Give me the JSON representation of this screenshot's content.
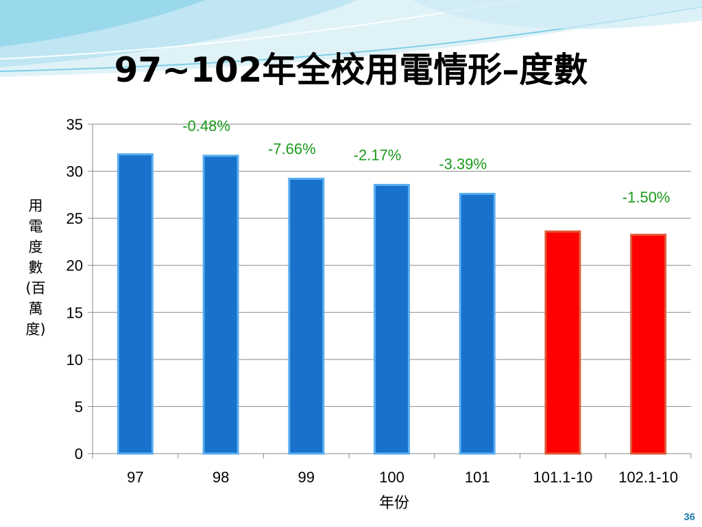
{
  "slide": {
    "title": "97~102年全校用電情形–度數",
    "page_number": "36"
  },
  "colors": {
    "bar_blue": "#1872cc",
    "bar_blue_edge": "#5aaef0",
    "bar_red": "#ff0000",
    "bar_red_edge": "#e05a3a",
    "label_green": "#1a9a1a",
    "grid": "#888888",
    "deco_light": "#bfe6f2",
    "deco_mid": "#7fcfe6"
  },
  "chart_data": {
    "type": "bar",
    "title": "",
    "categories": [
      "97",
      "98",
      "99",
      "100",
      "101",
      "101.1-10",
      "102.1-10"
    ],
    "values": [
      31.8,
      31.65,
      29.2,
      28.55,
      27.6,
      23.6,
      23.25
    ],
    "bar_colors": [
      "blue",
      "blue",
      "blue",
      "blue",
      "blue",
      "red",
      "red"
    ],
    "annotations": [
      {
        "category": "98",
        "text": "-0.48%"
      },
      {
        "category": "99",
        "text": "-7.66%"
      },
      {
        "category": "100",
        "text": "-2.17%"
      },
      {
        "category": "101",
        "text": "-3.39%"
      },
      {
        "category": "102.1-10",
        "text": "-1.50%"
      }
    ],
    "xlabel": "年份",
    "ylabel": "用電度數(百萬度)",
    "ylim": [
      0,
      35
    ],
    "yticks": [
      0,
      5,
      10,
      15,
      20,
      25,
      30,
      35
    ],
    "grid": true,
    "legend": "none"
  }
}
